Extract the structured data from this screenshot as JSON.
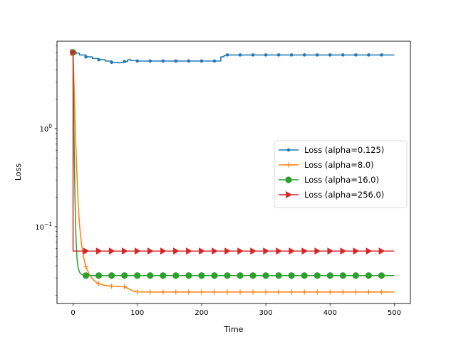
{
  "chart_data": {
    "type": "line",
    "title": "",
    "xlabel": "Time",
    "ylabel": "Loss",
    "xlim": [
      -25,
      525
    ],
    "ylim": [
      0.0165,
      7.8
    ],
    "yscale": "log",
    "grid": false,
    "legend_position": "center-right",
    "x_ticks": [
      0,
      100,
      200,
      300,
      400,
      500
    ],
    "x_tick_labels": [
      "0",
      "100",
      "200",
      "300",
      "400",
      "500"
    ],
    "y_ticks": [
      1,
      0.1
    ],
    "y_tick_labels": [
      "10^0",
      "10^-1"
    ],
    "series": [
      {
        "name": "Loss (alpha=0.125)",
        "color": "#1f77b4",
        "marker": "point",
        "step": true,
        "x": [
          0,
          5,
          10,
          20,
          30,
          40,
          50,
          60,
          70,
          75,
          80,
          85,
          90,
          100,
          120,
          140,
          160,
          180,
          200,
          220,
          230,
          235,
          240,
          260,
          280,
          300,
          320,
          340,
          360,
          380,
          400,
          420,
          440,
          460,
          480,
          500
        ],
        "y": [
          6.0,
          5.9,
          5.65,
          5.4,
          5.2,
          5.05,
          4.9,
          4.75,
          4.7,
          4.75,
          4.85,
          5.05,
          4.95,
          4.9,
          4.9,
          4.9,
          4.9,
          4.9,
          4.9,
          4.9,
          5.4,
          5.6,
          5.65,
          5.65,
          5.65,
          5.65,
          5.65,
          5.65,
          5.65,
          5.65,
          5.65,
          5.65,
          5.65,
          5.65,
          5.65,
          5.65
        ],
        "marker_x": [
          0,
          20,
          40,
          60,
          80,
          100,
          120,
          140,
          160,
          180,
          200,
          220,
          240,
          260,
          280,
          300,
          320,
          340,
          360,
          380,
          400,
          420,
          440,
          460,
          480
        ]
      },
      {
        "name": "Loss (alpha=8.0)",
        "color": "#ff7f0e",
        "marker": "plus",
        "step": false,
        "x": [
          0,
          2,
          4,
          6,
          8,
          10,
          13,
          16,
          20,
          25,
          30,
          35,
          40,
          50,
          60,
          70,
          80,
          85,
          90,
          95,
          100,
          120,
          140,
          160,
          180,
          200,
          220,
          240,
          260,
          280,
          300,
          320,
          340,
          360,
          380,
          400,
          420,
          440,
          460,
          480,
          500
        ],
        "y": [
          6.0,
          2.2,
          0.8,
          0.35,
          0.17,
          0.105,
          0.068,
          0.05,
          0.039,
          0.033,
          0.0295,
          0.0275,
          0.0262,
          0.0252,
          0.0248,
          0.0246,
          0.0244,
          0.0236,
          0.0226,
          0.022,
          0.0217,
          0.0216,
          0.0216,
          0.0216,
          0.0216,
          0.0216,
          0.0216,
          0.0216,
          0.0216,
          0.0216,
          0.0216,
          0.0216,
          0.0216,
          0.0216,
          0.0216,
          0.0216,
          0.0216,
          0.0216,
          0.0216,
          0.0216,
          0.0216
        ],
        "marker_x": [
          0,
          20,
          40,
          60,
          80,
          100,
          120,
          140,
          160,
          180,
          200,
          220,
          240,
          260,
          280,
          300,
          320,
          340,
          360,
          380,
          400,
          420,
          440,
          460,
          480
        ]
      },
      {
        "name": "Loss (alpha=16.0)",
        "color": "#2ca02c",
        "marker": "circle",
        "step": false,
        "x": [
          0,
          1,
          2,
          3,
          4,
          5,
          6,
          7,
          8,
          10,
          12,
          15,
          20,
          40,
          60,
          80,
          100,
          120,
          140,
          160,
          180,
          200,
          220,
          240,
          260,
          280,
          300,
          320,
          340,
          360,
          380,
          400,
          420,
          440,
          460,
          480,
          500
        ],
        "y": [
          6.0,
          1.6,
          0.5,
          0.2,
          0.1,
          0.065,
          0.049,
          0.042,
          0.038,
          0.0345,
          0.0332,
          0.0322,
          0.0318,
          0.0318,
          0.0318,
          0.0318,
          0.0318,
          0.0318,
          0.0318,
          0.0318,
          0.0318,
          0.0318,
          0.0318,
          0.0318,
          0.0318,
          0.0318,
          0.0318,
          0.0318,
          0.0318,
          0.0318,
          0.0318,
          0.0318,
          0.0318,
          0.0318,
          0.0318,
          0.0318,
          0.0318
        ],
        "marker_x": [
          0,
          20,
          40,
          60,
          80,
          100,
          120,
          140,
          160,
          180,
          200,
          220,
          240,
          260,
          280,
          300,
          320,
          340,
          360,
          380,
          400,
          420,
          440,
          460,
          480
        ]
      },
      {
        "name": "Loss (alpha=256.0)",
        "color": "#d62728",
        "marker": "triangle-right",
        "step": false,
        "x": [
          0,
          0.01,
          20,
          500
        ],
        "y": [
          6.0,
          0.0565,
          0.0565,
          0.0565
        ],
        "marker_x": [
          0,
          20,
          40,
          60,
          80,
          100,
          120,
          140,
          160,
          180,
          200,
          220,
          240,
          260,
          280,
          300,
          320,
          340,
          360,
          380,
          400,
          420,
          440,
          460,
          480
        ]
      }
    ]
  }
}
